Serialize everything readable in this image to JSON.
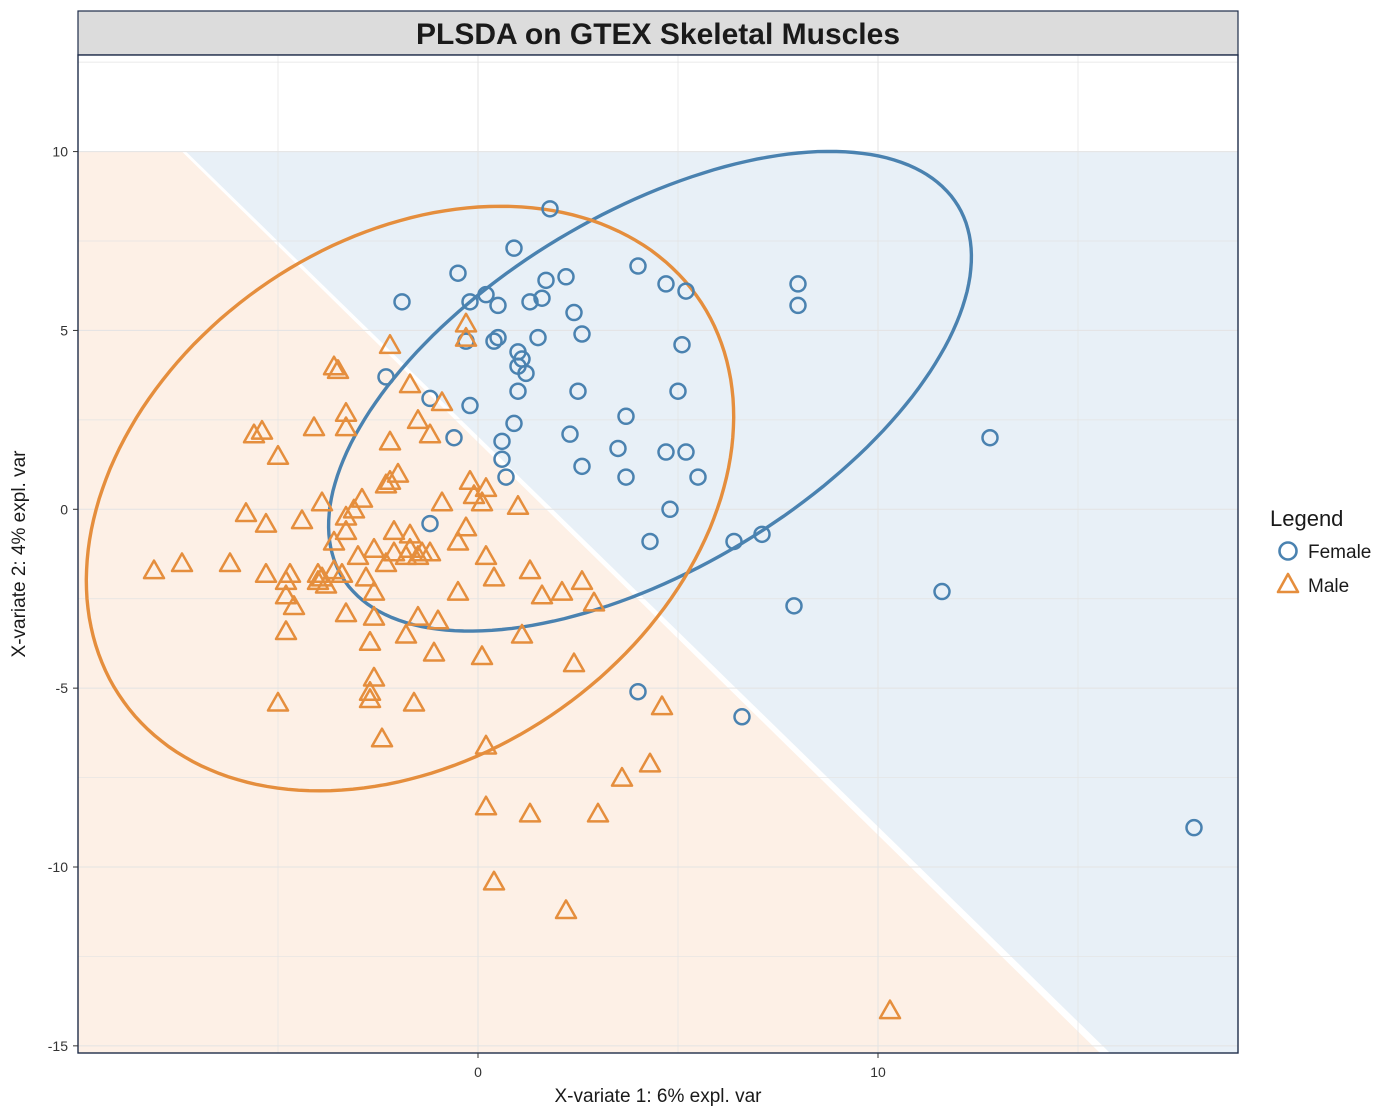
{
  "chart_data": {
    "type": "scatter",
    "title": "PLSDA on GTEX Skeletal Muscles",
    "xlabel": "X-variate 1: 6% expl. var",
    "ylabel": "X-variate 2: 4% expl. var",
    "xlim": [
      -10,
      19
    ],
    "ylim": [
      -15.2,
      12.7
    ],
    "xticks": [
      0,
      10
    ],
    "yticks": [
      10,
      5,
      0,
      -5,
      -10,
      -15
    ],
    "grid": true,
    "legend": {
      "title": "Legend",
      "position": "right"
    },
    "background_regions": [
      {
        "class": "Female",
        "color": "#e8f0f7"
      },
      {
        "class": "Male",
        "color": "#fdf0e6"
      }
    ],
    "series": [
      {
        "name": "Female",
        "marker": "circle",
        "color": "#4a82b0",
        "ellipse": {
          "center": [
            4.3,
            3.3
          ],
          "rx": 9.3,
          "ry": 4.8,
          "rotation_deg": 36
        },
        "points": [
          [
            1.8,
            8.4
          ],
          [
            0.9,
            7.3
          ],
          [
            -0.5,
            6.6
          ],
          [
            2.2,
            6.5
          ],
          [
            1.7,
            6.4
          ],
          [
            4.0,
            6.8
          ],
          [
            4.7,
            6.3
          ],
          [
            5.2,
            6.1
          ],
          [
            -1.9,
            5.8
          ],
          [
            0.2,
            6.0
          ],
          [
            -0.2,
            5.8
          ],
          [
            0.5,
            5.7
          ],
          [
            1.3,
            5.8
          ],
          [
            1.6,
            5.9
          ],
          [
            2.4,
            5.5
          ],
          [
            2.6,
            4.9
          ],
          [
            1.5,
            4.8
          ],
          [
            5.1,
            4.6
          ],
          [
            -0.3,
            4.7
          ],
          [
            0.4,
            4.7
          ],
          [
            0.5,
            4.8
          ],
          [
            1.0,
            4.4
          ],
          [
            1.1,
            4.2
          ],
          [
            1.0,
            4.0
          ],
          [
            1.2,
            3.8
          ],
          [
            -2.3,
            3.7
          ],
          [
            2.5,
            3.3
          ],
          [
            5.0,
            3.3
          ],
          [
            1.0,
            3.3
          ],
          [
            -1.2,
            3.1
          ],
          [
            -0.2,
            2.9
          ],
          [
            3.7,
            2.6
          ],
          [
            0.9,
            2.4
          ],
          [
            2.3,
            2.1
          ],
          [
            -0.6,
            2.0
          ],
          [
            0.6,
            1.9
          ],
          [
            3.5,
            1.7
          ],
          [
            4.7,
            1.6
          ],
          [
            5.2,
            1.6
          ],
          [
            0.6,
            1.4
          ],
          [
            2.6,
            1.2
          ],
          [
            3.7,
            0.9
          ],
          [
            5.5,
            0.9
          ],
          [
            0.7,
            0.9
          ],
          [
            4.8,
            0.0
          ],
          [
            -1.2,
            -0.4
          ],
          [
            4.3,
            -0.9
          ],
          [
            6.4,
            -0.9
          ],
          [
            7.1,
            -0.7
          ],
          [
            8.0,
            6.3
          ],
          [
            8.0,
            5.7
          ],
          [
            12.8,
            2.0
          ],
          [
            11.6,
            -2.3
          ],
          [
            7.9,
            -2.7
          ],
          [
            4.0,
            -5.1
          ],
          [
            6.6,
            -5.8
          ],
          [
            17.9,
            -8.9
          ]
        ]
      },
      {
        "name": "Male",
        "marker": "triangle",
        "color": "#e58e3d",
        "ellipse": {
          "center": [
            -1.7,
            0.3
          ],
          "rx": 9.2,
          "ry": 6.9,
          "rotation_deg": 46
        },
        "points": [
          [
            -0.3,
            5.2
          ],
          [
            -0.3,
            4.8
          ],
          [
            -2.2,
            4.6
          ],
          [
            -3.6,
            4.0
          ],
          [
            -3.5,
            3.9
          ],
          [
            -1.7,
            3.5
          ],
          [
            -3.3,
            2.7
          ],
          [
            -3.3,
            2.3
          ],
          [
            -4.1,
            2.3
          ],
          [
            -5.6,
            2.1
          ],
          [
            -5.4,
            2.2
          ],
          [
            -1.5,
            2.5
          ],
          [
            -1.2,
            2.1
          ],
          [
            -0.9,
            3.0
          ],
          [
            -2.2,
            1.9
          ],
          [
            -5.0,
            1.5
          ],
          [
            -2.0,
            1.0
          ],
          [
            -2.3,
            0.7
          ],
          [
            -2.2,
            0.8
          ],
          [
            -0.2,
            0.8
          ],
          [
            0.2,
            0.6
          ],
          [
            -0.1,
            0.4
          ],
          [
            0.1,
            0.2
          ],
          [
            -0.9,
            0.2
          ],
          [
            1.0,
            0.1
          ],
          [
            -2.9,
            0.3
          ],
          [
            -3.1,
            0.0
          ],
          [
            -3.3,
            -0.2
          ],
          [
            -3.9,
            0.2
          ],
          [
            -4.4,
            -0.3
          ],
          [
            -5.3,
            -0.4
          ],
          [
            -5.8,
            -0.1
          ],
          [
            -0.3,
            -0.5
          ],
          [
            -0.5,
            -0.9
          ],
          [
            -1.7,
            -0.7
          ],
          [
            -2.1,
            -0.6
          ],
          [
            -3.3,
            -0.6
          ],
          [
            -3.6,
            -0.9
          ],
          [
            -2.1,
            -1.2
          ],
          [
            -2.6,
            -1.1
          ],
          [
            -3.0,
            -1.3
          ],
          [
            -1.7,
            -1.1
          ],
          [
            -1.5,
            -1.3
          ],
          [
            -1.4,
            -1.2
          ],
          [
            -1.2,
            -1.2
          ],
          [
            -1.8,
            -1.3
          ],
          [
            -2.3,
            -1.5
          ],
          [
            0.2,
            -1.3
          ],
          [
            -3.4,
            -1.8
          ],
          [
            -3.6,
            -1.7
          ],
          [
            -3.9,
            -1.9
          ],
          [
            -4.0,
            -2.0
          ],
          [
            -4.0,
            -1.8
          ],
          [
            -3.8,
            -2.1
          ],
          [
            -4.7,
            -1.8
          ],
          [
            -5.3,
            -1.8
          ],
          [
            -6.2,
            -1.5
          ],
          [
            -7.4,
            -1.5
          ],
          [
            -8.1,
            -1.7
          ],
          [
            -2.8,
            -1.9
          ],
          [
            -2.6,
            -2.3
          ],
          [
            -4.8,
            -2.0
          ],
          [
            -4.8,
            -2.4
          ],
          [
            -4.6,
            -2.7
          ],
          [
            -3.3,
            -2.9
          ],
          [
            -0.5,
            -2.3
          ],
          [
            0.4,
            -1.9
          ],
          [
            1.3,
            -1.7
          ],
          [
            1.6,
            -2.4
          ],
          [
            2.1,
            -2.3
          ],
          [
            2.6,
            -2.0
          ],
          [
            2.9,
            -2.6
          ],
          [
            -2.6,
            -3.0
          ],
          [
            -1.5,
            -3.0
          ],
          [
            -1.0,
            -3.1
          ],
          [
            -4.8,
            -3.4
          ],
          [
            -1.8,
            -3.5
          ],
          [
            -2.7,
            -3.7
          ],
          [
            1.1,
            -3.5
          ],
          [
            -1.1,
            -4.0
          ],
          [
            0.1,
            -4.1
          ],
          [
            2.4,
            -4.3
          ],
          [
            -2.6,
            -4.7
          ],
          [
            -2.7,
            -5.1
          ],
          [
            -2.7,
            -5.3
          ],
          [
            -1.6,
            -5.4
          ],
          [
            -5.0,
            -5.4
          ],
          [
            4.6,
            -5.5
          ],
          [
            -2.4,
            -6.4
          ],
          [
            0.2,
            -6.6
          ],
          [
            4.3,
            -7.1
          ],
          [
            3.6,
            -7.5
          ],
          [
            0.2,
            -8.3
          ],
          [
            1.3,
            -8.5
          ],
          [
            3.0,
            -8.5
          ],
          [
            0.4,
            -10.4
          ],
          [
            2.2,
            -11.2
          ],
          [
            10.3,
            -14.0
          ]
        ]
      }
    ]
  }
}
